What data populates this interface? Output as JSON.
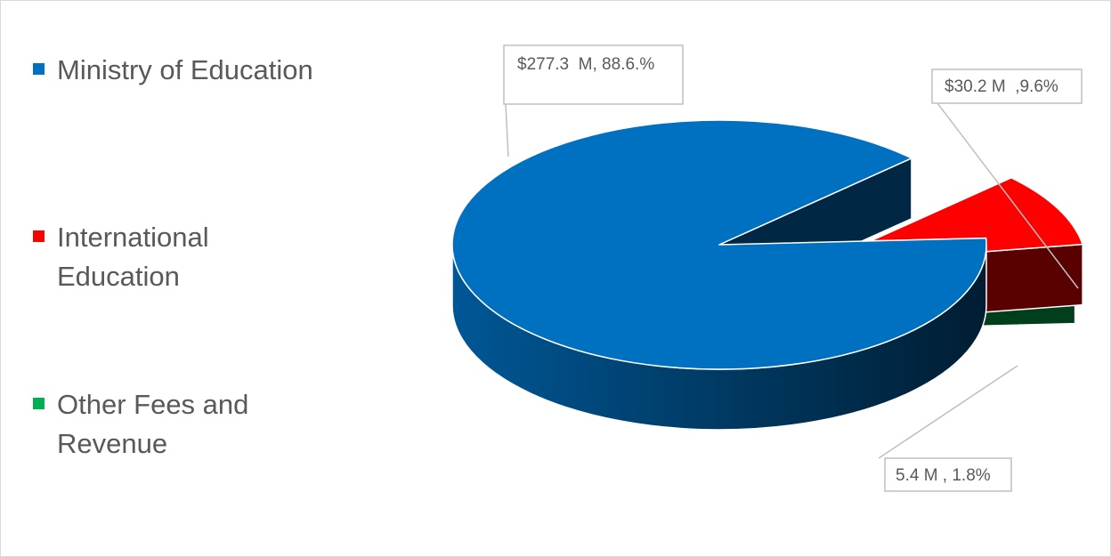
{
  "chart_data": {
    "type": "pie",
    "style": "3d-exploded",
    "title": "",
    "legend_position": "left",
    "slices": [
      {
        "name": "Ministry of Education",
        "value": 277.3,
        "percent": 88.6,
        "color": "#0070C0",
        "label": "$277.3  M, 88.6.%"
      },
      {
        "name": "International Education",
        "value": 30.2,
        "percent": 9.6,
        "color": "#FF0000",
        "label": "$30.2 M  ,9.6%"
      },
      {
        "name": "Other Fees and Revenue",
        "value": 5.4,
        "percent": 1.8,
        "color": "#00B050",
        "label": "5.4 M , 1.8%"
      }
    ]
  },
  "legend": [
    {
      "label": "Ministry of Education",
      "color": "#0070C0"
    },
    {
      "label": "International Education",
      "color": "#FF0000"
    },
    {
      "label": "Other Fees and Revenue",
      "color": "#00B050"
    }
  ]
}
